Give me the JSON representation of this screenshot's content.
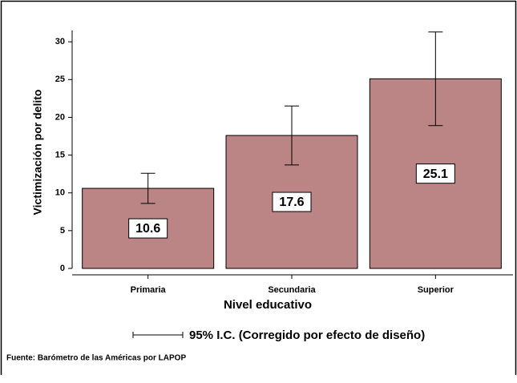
{
  "chart_data": {
    "type": "bar",
    "categories": [
      "Primaria",
      "Secundaria",
      "Superior"
    ],
    "values": [
      10.6,
      17.6,
      25.1
    ],
    "errors": [
      2.0,
      3.9,
      6.2
    ],
    "color": "#bc8585",
    "ylim": [
      0,
      31.5
    ],
    "yticks": [
      0,
      5,
      10,
      15,
      20,
      25,
      30
    ],
    "xlabel": "Nivel educativo",
    "ylabel": "Victimización por delito",
    "legend": "95% I.C. (Corregido por efecto de diseño)",
    "source": "Fuente: Barómetro de las Américas por LAPOP"
  }
}
